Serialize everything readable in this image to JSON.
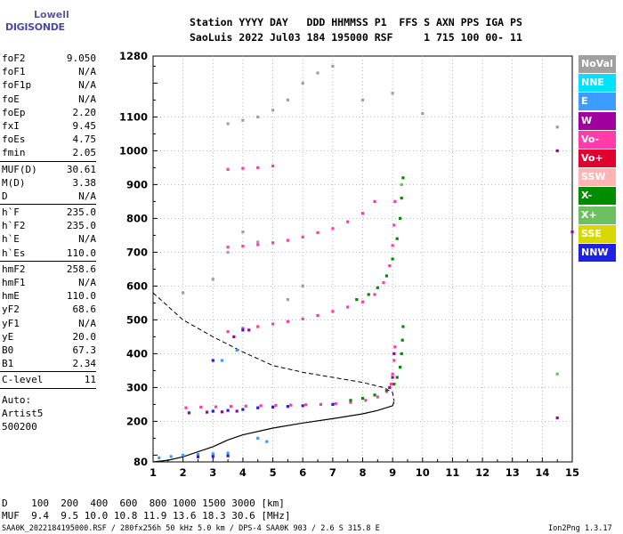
{
  "logo": {
    "line1": "Lowell",
    "line2": "DIGISONDE"
  },
  "header": {
    "line1": "Station YYYY DAY   DDD HHMMSS P1  FFS S AXN PPS IGA PS",
    "line2": "SaoLuis 2022 Jul03 184 195000 RSF     1 715 100 00- 11"
  },
  "params": {
    "group1": [
      {
        "name": "foF2",
        "value": "9.050"
      },
      {
        "name": "foF1",
        "value": "N/A"
      },
      {
        "name": "foF1p",
        "value": "N/A"
      },
      {
        "name": "foE",
        "value": "N/A"
      },
      {
        "name": "foEp",
        "value": "2.20"
      },
      {
        "name": "fxI",
        "value": "9.45"
      },
      {
        "name": "foEs",
        "value": "4.75"
      },
      {
        "name": "fmin",
        "value": "2.05"
      }
    ],
    "group2": [
      {
        "name": "MUF(D)",
        "value": "30.61"
      },
      {
        "name": "M(D)",
        "value": "3.38"
      },
      {
        "name": "D",
        "value": "N/A"
      }
    ],
    "group3": [
      {
        "name": "h`F",
        "value": "235.0"
      },
      {
        "name": "h`F2",
        "value": "235.0"
      },
      {
        "name": "h`E",
        "value": "N/A"
      },
      {
        "name": "h`Es",
        "value": "110.0"
      }
    ],
    "group4": [
      {
        "name": "hmF2",
        "value": "258.6"
      },
      {
        "name": "hmF1",
        "value": "N/A"
      },
      {
        "name": "hmE",
        "value": "110.0"
      },
      {
        "name": "yF2",
        "value": "68.6"
      },
      {
        "name": "yF1",
        "value": "N/A"
      },
      {
        "name": "yE",
        "value": "20.0"
      },
      {
        "name": "B0",
        "value": "67.3"
      },
      {
        "name": "B1",
        "value": "2.34"
      }
    ],
    "group5": [
      {
        "name": "C-level",
        "value": "11"
      }
    ],
    "auto": [
      "Auto:",
      "Artist5",
      "500200"
    ]
  },
  "legend": [
    {
      "label": "NoVal",
      "color": "#a0a0a0"
    },
    {
      "label": "NNE",
      "color": "#00e0ff"
    },
    {
      "label": "E",
      "color": "#3c9cff"
    },
    {
      "label": "W",
      "color": "#a000a0"
    },
    {
      "label": "Vo-",
      "color": "#ff3caa"
    },
    {
      "label": "Vo+",
      "color": "#e00030"
    },
    {
      "label": "SSW",
      "color": "#ffb4b4"
    },
    {
      "label": "X-",
      "color": "#008c00"
    },
    {
      "label": "X+",
      "color": "#6cc060"
    },
    {
      "label": "SSE",
      "color": "#d8d800"
    },
    {
      "label": "NNW",
      "color": "#2020e0"
    }
  ],
  "footer": {
    "d_row": "D    100  200  400  600  800 1000 1500 3000 [km]",
    "muf_row": "MUF  9.4  9.5 10.0 10.8 11.9 13.6 18.3 30.6 [MHz]",
    "info": "SAA0K_2022184195000.RSF / 280fx256h 50 kHz 5.0 km / DPS-4 SAA0K 903 / 2.6 S 315.8 E",
    "version": "Ion2Png 1.3.17"
  },
  "chart_data": {
    "type": "scatter",
    "xlabel": "",
    "ylabel": "",
    "xlim": [
      1,
      15
    ],
    "ylim": [
      80,
      1280
    ],
    "x_ticks": [
      1,
      2,
      3,
      4,
      5,
      6,
      7,
      8,
      9,
      10,
      11,
      12,
      13,
      14,
      15
    ],
    "y_ticks": [
      80,
      200,
      300,
      400,
      500,
      600,
      700,
      800,
      900,
      1000,
      1100,
      1280
    ],
    "grid": true,
    "series": [
      {
        "name": "Vo-",
        "color": "#ff3caa",
        "points": [
          [
            2.1,
            240
          ],
          [
            2.6,
            242
          ],
          [
            3.1,
            243
          ],
          [
            3.6,
            244
          ],
          [
            4.1,
            245
          ],
          [
            4.6,
            246
          ],
          [
            5.1,
            247
          ],
          [
            5.6,
            248
          ],
          [
            6.1,
            249
          ],
          [
            6.6,
            250
          ],
          [
            7.1,
            252
          ],
          [
            7.6,
            256
          ],
          [
            8.1,
            262
          ],
          [
            8.5,
            272
          ],
          [
            8.8,
            288
          ],
          [
            8.95,
            310
          ],
          [
            9.0,
            340
          ],
          [
            9.05,
            380
          ],
          [
            9.08,
            420
          ],
          [
            3.5,
            465
          ],
          [
            4.0,
            475
          ],
          [
            4.5,
            480
          ],
          [
            5.0,
            488
          ],
          [
            5.5,
            495
          ],
          [
            6.0,
            503
          ],
          [
            6.5,
            513
          ],
          [
            7.0,
            525
          ],
          [
            7.5,
            538
          ],
          [
            8.0,
            553
          ],
          [
            8.4,
            575
          ],
          [
            8.7,
            610
          ],
          [
            8.9,
            660
          ],
          [
            9.0,
            720
          ],
          [
            9.05,
            780
          ],
          [
            9.08,
            850
          ],
          [
            3.5,
            715
          ],
          [
            4.0,
            718
          ],
          [
            4.5,
            722
          ],
          [
            5.0,
            728
          ],
          [
            5.5,
            735
          ],
          [
            6.0,
            745
          ],
          [
            6.5,
            758
          ],
          [
            7.0,
            770
          ],
          [
            7.5,
            790
          ],
          [
            8.0,
            815
          ],
          [
            8.4,
            850
          ],
          [
            3.5,
            945
          ],
          [
            4.0,
            948
          ],
          [
            4.5,
            950
          ],
          [
            5.0,
            955
          ]
        ]
      },
      {
        "name": "X-",
        "color": "#008c00",
        "points": [
          [
            7.6,
            262
          ],
          [
            8.0,
            268
          ],
          [
            8.4,
            278
          ],
          [
            8.8,
            292
          ],
          [
            9.05,
            310
          ],
          [
            9.15,
            330
          ],
          [
            9.25,
            360
          ],
          [
            9.3,
            400
          ],
          [
            9.33,
            440
          ],
          [
            9.35,
            480
          ],
          [
            7.8,
            560
          ],
          [
            8.2,
            575
          ],
          [
            8.5,
            595
          ],
          [
            8.8,
            630
          ],
          [
            9.0,
            680
          ],
          [
            9.15,
            740
          ],
          [
            9.25,
            800
          ],
          [
            9.3,
            860
          ],
          [
            9.35,
            920
          ]
        ]
      },
      {
        "name": "W",
        "color": "#a000a0",
        "points": [
          [
            2.2,
            225
          ],
          [
            2.8,
            227
          ],
          [
            3.3,
            228
          ],
          [
            3.8,
            230
          ],
          [
            8.9,
            300
          ],
          [
            9.0,
            330
          ],
          [
            9.05,
            400
          ],
          [
            3.7,
            450
          ],
          [
            4.2,
            470
          ],
          [
            14.5,
            210
          ],
          [
            14.5,
            1000
          ],
          [
            15,
            760
          ]
        ]
      },
      {
        "name": "E",
        "color": "#3c9cff",
        "points": [
          [
            1.2,
            92
          ],
          [
            1.6,
            96
          ],
          [
            2.0,
            100
          ],
          [
            2.5,
            102
          ],
          [
            3.0,
            104
          ],
          [
            3.5,
            106
          ],
          [
            4.5,
            150
          ],
          [
            4.8,
            140
          ],
          [
            3.3,
            380
          ],
          [
            3.8,
            410
          ]
        ]
      },
      {
        "name": "NNW",
        "color": "#2020e0",
        "points": [
          [
            2.5,
            95
          ],
          [
            3.0,
            96
          ],
          [
            3.5,
            98
          ],
          [
            3.0,
            230
          ],
          [
            3.5,
            232
          ],
          [
            4.0,
            235
          ],
          [
            4.5,
            240
          ],
          [
            5.0,
            242
          ],
          [
            5.5,
            244
          ],
          [
            6.0,
            246
          ],
          [
            7.0,
            250
          ],
          [
            4.0,
            470
          ],
          [
            3.0,
            380
          ]
        ]
      },
      {
        "name": "NoVal",
        "color": "#a0a0a0",
        "points": [
          [
            3.5,
            700
          ],
          [
            4.0,
            760
          ],
          [
            4.5,
            730
          ],
          [
            3.5,
            1080
          ],
          [
            4.0,
            1090
          ],
          [
            4.5,
            1100
          ],
          [
            5.0,
            1120
          ],
          [
            5.5,
            1150
          ],
          [
            6.0,
            1200
          ],
          [
            6.5,
            1230
          ],
          [
            7.0,
            1250
          ],
          [
            8.0,
            1150
          ],
          [
            9.0,
            1170
          ],
          [
            10.0,
            1110
          ],
          [
            2.0,
            580
          ],
          [
            3.0,
            620
          ],
          [
            5.5,
            560
          ],
          [
            6.0,
            600
          ]
        ]
      },
      {
        "name": "X+",
        "color": "#6cc060",
        "points": [
          [
            14.5,
            1070
          ],
          [
            14.5,
            340
          ],
          [
            9.3,
            900
          ]
        ]
      }
    ],
    "profile_solid": [
      [
        1.0,
        80
      ],
      [
        1.5,
        85
      ],
      [
        2.0,
        95
      ],
      [
        2.5,
        110
      ],
      [
        3.0,
        125
      ],
      [
        3.5,
        145
      ],
      [
        4.0,
        160
      ],
      [
        5.0,
        180
      ],
      [
        6.0,
        195
      ],
      [
        7.0,
        208
      ],
      [
        8.0,
        222
      ],
      [
        8.5,
        232
      ],
      [
        9.0,
        246
      ],
      [
        9.05,
        258
      ]
    ],
    "profile_dashed": [
      [
        1.0,
        580
      ],
      [
        1.5,
        540
      ],
      [
        2.0,
        500
      ],
      [
        3.0,
        450
      ],
      [
        4.0,
        405
      ],
      [
        5.0,
        365
      ],
      [
        6.0,
        345
      ],
      [
        7.0,
        330
      ],
      [
        8.0,
        315
      ],
      [
        8.7,
        300
      ],
      [
        9.0,
        285
      ],
      [
        9.05,
        260
      ]
    ]
  }
}
